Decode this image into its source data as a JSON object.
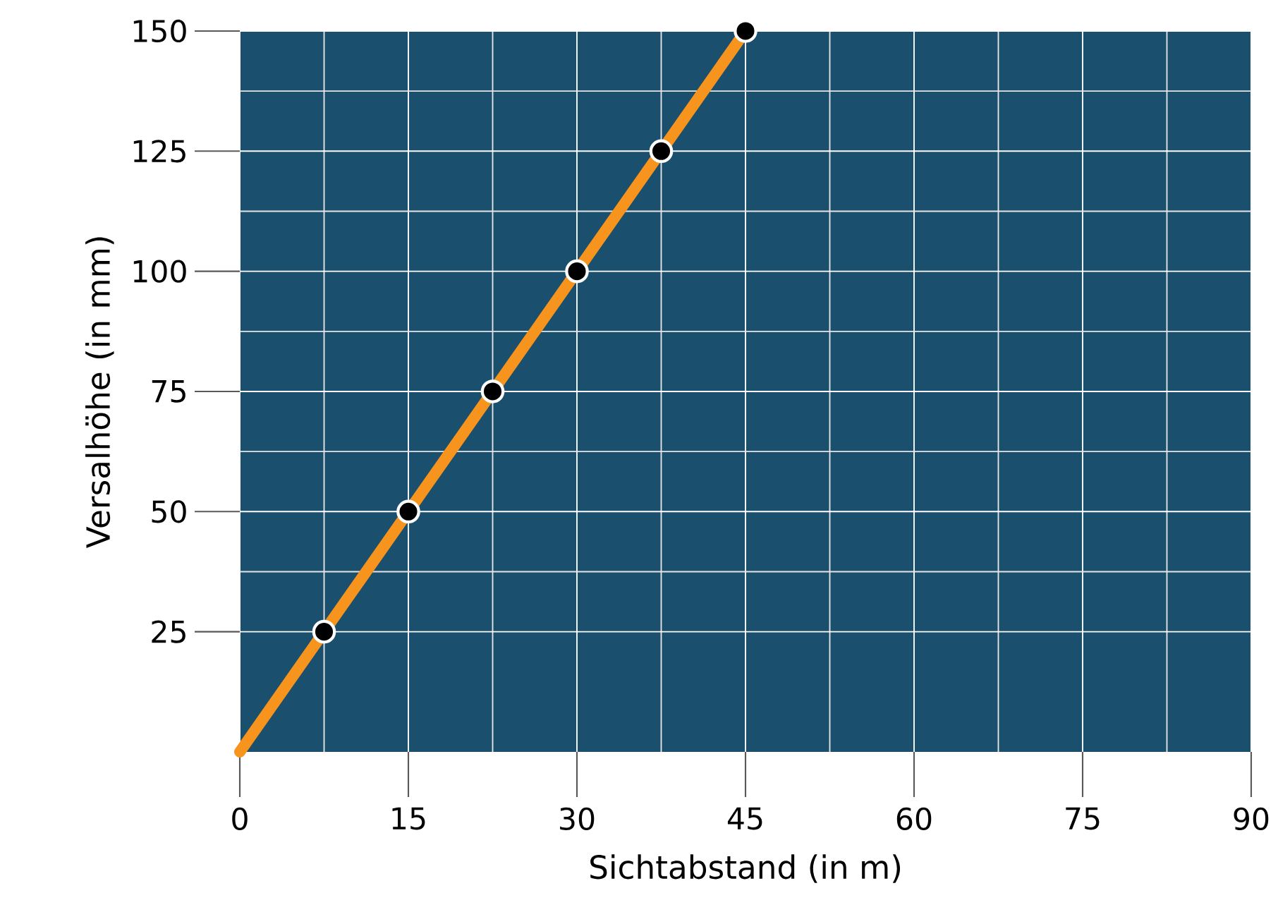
{
  "chart_data": {
    "type": "line",
    "xlabel": "Sichtabstand (in m)",
    "ylabel": "Versalhöhe (in mm)",
    "xlim": [
      0,
      90
    ],
    "ylim": [
      0,
      150
    ],
    "xticks": [
      0,
      15,
      30,
      45,
      60,
      75,
      90
    ],
    "yticks": [
      25,
      50,
      75,
      100,
      125,
      150
    ],
    "grid": true,
    "series": [
      {
        "color": "#f7941d",
        "marker": "none",
        "x": [
          0,
          45
        ],
        "values": [
          0,
          150
        ]
      },
      {
        "type": "scatter",
        "color": "#000000",
        "marker": "circle",
        "x": [
          7.5,
          15,
          22.5,
          30,
          37.5,
          45
        ],
        "values": [
          25,
          50,
          75,
          100,
          125,
          150
        ]
      }
    ]
  }
}
